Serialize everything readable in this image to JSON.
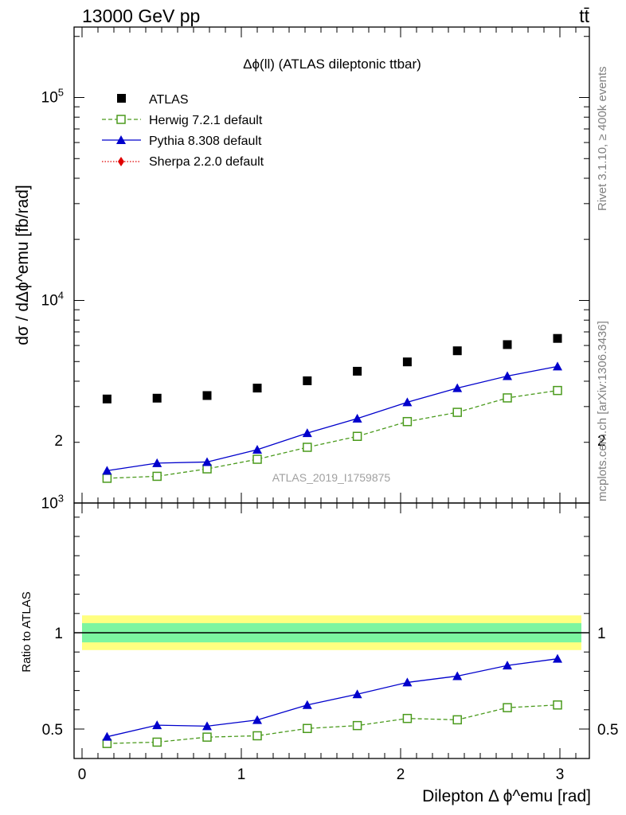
{
  "header": {
    "energy_label": "13000 GeV pp",
    "process_label": "tt̄"
  },
  "side_labels": {
    "rivet": "Rivet 3.1.10, ≥ 400k events",
    "mcplots": "mcplots.cern.ch [arXiv:1306.3436]"
  },
  "colors": {
    "atlas": "#000000",
    "herwig": "#4a9a1c",
    "pythia": "#0000cc",
    "sherpa": "#e00000",
    "band_inner": "#7cf5a0",
    "band_outer": "#ffff80"
  },
  "chart_data": [
    {
      "type": "scatter",
      "title": "Δϕ(ll) (ATLAS dileptonic ttbar)",
      "watermark": "ATLAS_2019_I1759875",
      "ylabel": "dσ / dΔϕ^emu [fb/rad]",
      "y_scale": "log",
      "ylim": [
        1000,
        200000
      ],
      "xlim": [
        -0.1,
        3.2
      ],
      "y_ticks": [
        "10^3",
        "10^4",
        "10^5"
      ],
      "legend_position": "top-left",
      "x": [
        0.157,
        0.471,
        0.785,
        1.1,
        1.414,
        1.728,
        2.042,
        2.356,
        2.67,
        2.985
      ],
      "series": [
        {
          "name": "ATLAS",
          "marker": "square",
          "values": [
            3270,
            3300,
            3400,
            3700,
            4020,
            4480,
            4980,
            5650,
            6060,
            6500
          ]
        },
        {
          "name": "Herwig 7.2.1 default",
          "marker": "open-square",
          "line": "dashed",
          "values": [
            1330,
            1360,
            1480,
            1650,
            1890,
            2140,
            2530,
            2810,
            3310,
            3600
          ]
        },
        {
          "name": "Pythia 8.308 default",
          "marker": "triangle",
          "line": "solid",
          "values": [
            1450,
            1580,
            1600,
            1840,
            2220,
            2620,
            3150,
            3700,
            4240,
            4730
          ]
        },
        {
          "name": "Sherpa 2.2.0 default",
          "marker": "diamond",
          "line": "dotted",
          "values": []
        }
      ]
    },
    {
      "type": "line",
      "ylabel": "Ratio to ATLAS",
      "xlabel": "Dilepton Δ ϕ^emu [rad]",
      "ylim": [
        0.42,
        2.3
      ],
      "xlim": [
        -0.1,
        3.2
      ],
      "y_ticks": [
        0.5,
        1,
        2
      ],
      "x_ticks": [
        0,
        1,
        2,
        3
      ],
      "x": [
        0.157,
        0.471,
        0.785,
        1.1,
        1.414,
        1.728,
        2.042,
        2.356,
        2.67,
        2.985
      ],
      "reference": 1,
      "band": {
        "inner": 0.05,
        "outer": 0.09
      },
      "series": [
        {
          "name": "Herwig 7.2.1 default",
          "values": [
            0.425,
            0.432,
            0.458,
            0.465,
            0.503,
            0.518,
            0.555,
            0.548,
            0.611,
            0.625
          ]
        },
        {
          "name": "Pythia 8.308 default",
          "values": [
            0.46,
            0.52,
            0.515,
            0.547,
            0.625,
            0.681,
            0.742,
            0.775,
            0.83,
            0.865
          ]
        }
      ]
    }
  ]
}
